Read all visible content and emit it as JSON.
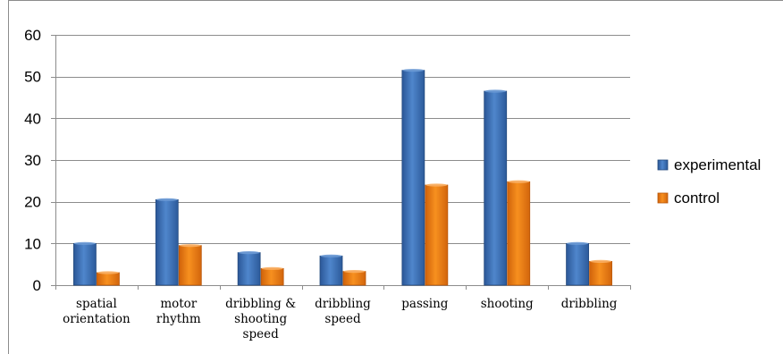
{
  "chart_data": {
    "type": "bar",
    "categories": [
      [
        "spatial",
        "orientation"
      ],
      [
        "motor",
        "rhythm"
      ],
      [
        "dribbling &",
        "shooting",
        "speed"
      ],
      [
        "dribbling",
        "speed"
      ],
      [
        "passing"
      ],
      [
        "shooting"
      ],
      [
        "dribbling"
      ]
    ],
    "series": [
      {
        "name": "experimental",
        "values": [
          10,
          20.5,
          7.8,
          7,
          51.5,
          46.5,
          10
        ],
        "color": "#3a6fb5"
      },
      {
        "name": "control",
        "values": [
          3,
          9.5,
          4,
          3.3,
          24,
          24.8,
          5.7
        ],
        "color": "#e8780e"
      }
    ],
    "yticks": [
      "0",
      "10",
      "20",
      "30",
      "40",
      "50",
      "60"
    ],
    "ylim": [
      0,
      60
    ],
    "grid": true,
    "legend_position": "right",
    "title": "",
    "xlabel": "",
    "ylabel": ""
  }
}
